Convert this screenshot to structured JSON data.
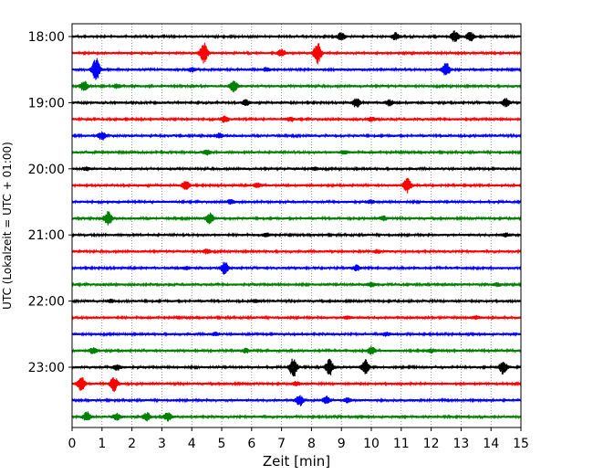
{
  "chart_data": {
    "type": "line",
    "title": "",
    "xlabel": "Zeit  [min]",
    "ylabel": "UTC (Lokalzeit = UTC + 01:00)",
    "xlim": [
      0,
      15
    ],
    "x_ticks": [
      "0",
      "1",
      "2",
      "3",
      "4",
      "5",
      "6",
      "7",
      "8",
      "9",
      "10",
      "11",
      "12",
      "13",
      "14",
      "15"
    ],
    "y_ticks": [
      "18:00",
      "19:00",
      "20:00",
      "21:00",
      "22:00",
      "23:00"
    ],
    "grid": "vertical dotted",
    "trace_interval_min": 15,
    "trace_colors": [
      "#000000",
      "#ff0000",
      "#0000ff",
      "#008000"
    ],
    "series": [
      {
        "start": "18:00",
        "events": [
          [
            12.8,
            0.45
          ],
          [
            13.3,
            0.35
          ],
          [
            9.0,
            0.3
          ],
          [
            10.8,
            0.25
          ]
        ]
      },
      {
        "start": "18:15",
        "events": [
          [
            4.4,
            0.9
          ],
          [
            8.2,
            0.8
          ],
          [
            7.0,
            0.25
          ]
        ]
      },
      {
        "start": "18:30",
        "events": [
          [
            0.8,
            0.9
          ],
          [
            12.5,
            0.5
          ],
          [
            4.0,
            0.15
          ],
          [
            6.5,
            0.12
          ]
        ]
      },
      {
        "start": "18:45",
        "events": [
          [
            0.4,
            0.4
          ],
          [
            5.4,
            0.45
          ],
          [
            1.5,
            0.15
          ]
        ]
      },
      {
        "start": "19:00",
        "events": [
          [
            9.5,
            0.35
          ],
          [
            14.5,
            0.3
          ],
          [
            10.6,
            0.2
          ],
          [
            5.8,
            0.2
          ]
        ]
      },
      {
        "start": "19:15",
        "events": [
          [
            5.1,
            0.2
          ],
          [
            7.3,
            0.15
          ],
          [
            10.0,
            0.15
          ]
        ]
      },
      {
        "start": "19:30",
        "events": [
          [
            1.0,
            0.3
          ],
          [
            4.9,
            0.15
          ]
        ]
      },
      {
        "start": "19:45",
        "events": [
          [
            4.5,
            0.2
          ],
          [
            9.1,
            0.15
          ]
        ]
      },
      {
        "start": "20:00",
        "events": [
          [
            0.5,
            0.1
          ],
          [
            8.1,
            0.1
          ]
        ]
      },
      {
        "start": "20:15",
        "events": [
          [
            3.8,
            0.35
          ],
          [
            11.2,
            0.55
          ],
          [
            6.2,
            0.15
          ]
        ]
      },
      {
        "start": "20:30",
        "events": [
          [
            5.3,
            0.15
          ],
          [
            10.0,
            0.12
          ]
        ]
      },
      {
        "start": "20:45",
        "events": [
          [
            1.2,
            0.5
          ],
          [
            4.6,
            0.4
          ],
          [
            10.4,
            0.15
          ]
        ]
      },
      {
        "start": "21:00",
        "events": [
          [
            6.5,
            0.12
          ],
          [
            14.5,
            0.12
          ]
        ]
      },
      {
        "start": "21:15",
        "events": [
          [
            4.5,
            0.15
          ],
          [
            10.2,
            0.12
          ]
        ]
      },
      {
        "start": "21:30",
        "events": [
          [
            5.1,
            0.5
          ],
          [
            9.5,
            0.2
          ],
          [
            3.8,
            0.1
          ]
        ]
      },
      {
        "start": "21:45",
        "events": [
          [
            10.0,
            0.15
          ],
          [
            14.2,
            0.12
          ]
        ]
      },
      {
        "start": "22:00",
        "events": [
          [
            1.3,
            0.1
          ],
          [
            6.1,
            0.1
          ]
        ]
      },
      {
        "start": "22:15",
        "events": [
          [
            9.2,
            0.1
          ],
          [
            13.5,
            0.1
          ]
        ]
      },
      {
        "start": "22:30",
        "events": [
          [
            4.8,
            0.1
          ],
          [
            10.5,
            0.12
          ]
        ]
      },
      {
        "start": "22:45",
        "events": [
          [
            0.7,
            0.2
          ],
          [
            5.8,
            0.15
          ],
          [
            10.0,
            0.3
          ],
          [
            12.0,
            0.12
          ]
        ]
      },
      {
        "start": "23:00",
        "events": [
          [
            7.4,
            0.75
          ],
          [
            8.6,
            0.6
          ],
          [
            9.8,
            0.55
          ],
          [
            14.4,
            0.5
          ],
          [
            1.5,
            0.2
          ]
        ]
      },
      {
        "start": "23:15",
        "events": [
          [
            0.3,
            0.55
          ],
          [
            1.4,
            0.55
          ],
          [
            7.5,
            0.15
          ]
        ]
      },
      {
        "start": "23:30",
        "events": [
          [
            7.6,
            0.4
          ],
          [
            8.5,
            0.3
          ],
          [
            9.2,
            0.15
          ]
        ]
      },
      {
        "start": "23:45",
        "events": [
          [
            0.5,
            0.35
          ],
          [
            2.5,
            0.3
          ],
          [
            3.2,
            0.3
          ],
          [
            1.5,
            0.25
          ]
        ]
      }
    ]
  }
}
